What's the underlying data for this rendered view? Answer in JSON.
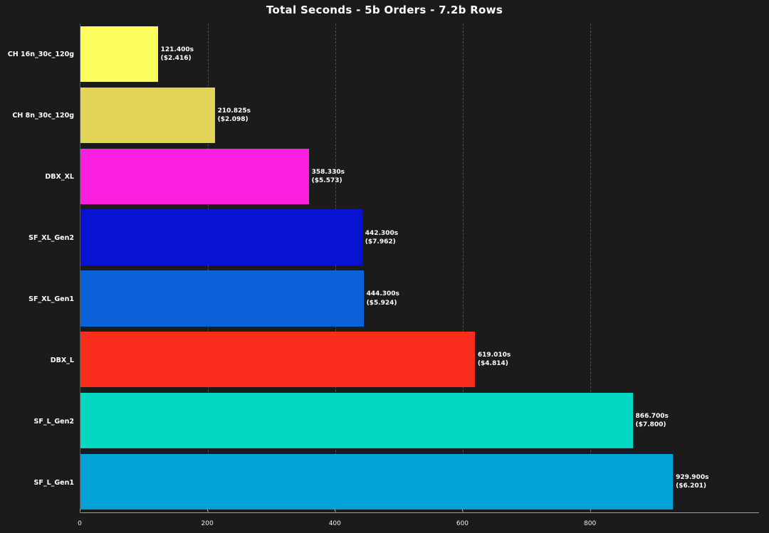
{
  "title": "Total Seconds - 5b Orders - 7.2b Rows",
  "chart_data": {
    "type": "bar",
    "orientation": "horizontal",
    "title": "Total Seconds - 5b Orders - 7.2b Rows",
    "categories": [
      "CH 16n_30c_120g",
      "CH 8n_30c_120g",
      "DBX_XL",
      "SF_XL_Gen2",
      "SF_XL_Gen1",
      "DBX_L",
      "SF_L_Gen2",
      "SF_L_Gen1"
    ],
    "values": [
      121.4,
      210.825,
      358.33,
      442.3,
      444.3,
      619.01,
      866.7,
      929.9
    ],
    "value_labels": [
      "121.400s",
      "210.825s",
      "358.330s",
      "442.300s",
      "444.300s",
      "619.010s",
      "866.700s",
      "929.900s"
    ],
    "cost_labels": [
      "($2.416)",
      "($2.098)",
      "($5.573)",
      "($7.962)",
      "($5.924)",
      "($4.814)",
      "($7.800)",
      "($6.201)"
    ],
    "bar_colors": [
      "#fafd5c",
      "#e2d456",
      "#fb1fe0",
      "#0713d0",
      "#0a61d8",
      "#fb2e1e",
      "#04d7c2",
      "#02a2d7"
    ],
    "xlabel": "",
    "ylabel": "",
    "xlim": [
      0,
      1065
    ],
    "xticks": [
      0,
      200,
      400,
      600,
      800
    ],
    "grid": "dashed-vertical",
    "legend": "none",
    "background_color": "#1b1b1b",
    "text_color": "#ffffff",
    "gridline_color": "#4d4d4d"
  }
}
